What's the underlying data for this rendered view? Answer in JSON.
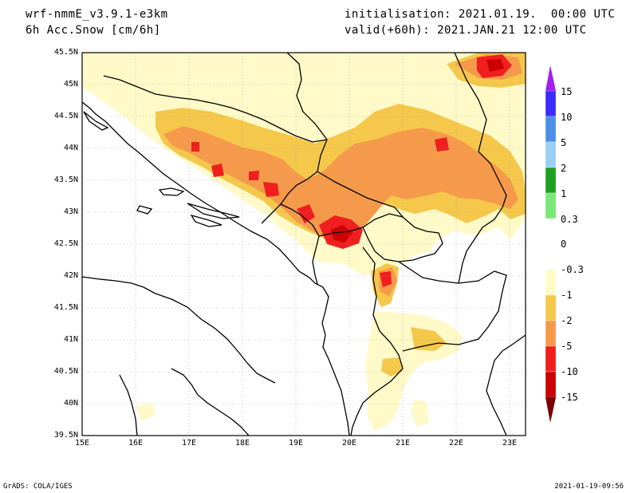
{
  "header": {
    "model": "wrf-nmmE_v3.9.1-e3km",
    "variable": "6h Acc.Snow [cm/6h]",
    "initialisation": "initialisation: 2021.01.19.  00:00 UTC",
    "valid": "valid(+60h): 2021.JAN.21 12:00 UTC"
  },
  "map": {
    "lon_range": [
      15,
      23.3
    ],
    "lat_range": [
      39.5,
      45.5
    ],
    "grid": "dotted"
  },
  "lat_ticks": [
    "45.5N",
    "45N",
    "44.5N",
    "44N",
    "43.5N",
    "43N",
    "42.5N",
    "42N",
    "41.5N",
    "41N",
    "40.5N",
    "40N",
    "39.5N"
  ],
  "lon_ticks": [
    "15E",
    "16E",
    "17E",
    "18E",
    "19E",
    "20E",
    "21E",
    "22E",
    "23E"
  ],
  "colorbar": {
    "labels": [
      "15",
      "10",
      "5",
      "2",
      "1",
      "0.3",
      "0",
      "-0.3",
      "-1",
      "-2",
      "-5",
      "-10",
      "-15"
    ],
    "colors": [
      "#3b2bff",
      "#4b8fe8",
      "#9ccff5",
      "#20a020",
      "#78e878",
      "#ffffff",
      "#ffffff",
      "#fffac8",
      "#f5c84b",
      "#f59a4b",
      "#f01e1e",
      "#cc0000",
      "#8b0000"
    ],
    "top_arrow_color": "#a020f0",
    "bottom_arrow_color": "#7a0000"
  },
  "footer": {
    "credit": "GrADS: COLA/IGES",
    "timestamp": "2021-01-19-09:56"
  }
}
